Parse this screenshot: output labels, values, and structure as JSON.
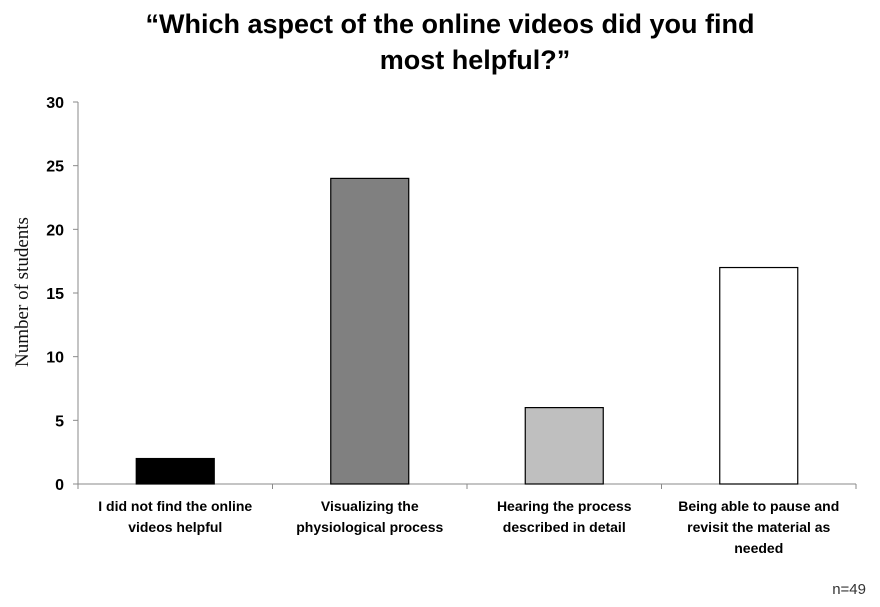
{
  "chart_data": {
    "type": "bar",
    "title": "“Which aspect of the online videos did you find most helpful?”",
    "title_lines": [
      "“Which aspect of the online videos did you find",
      "most helpful?”"
    ],
    "ylabel": "Number of students",
    "xlabel": "",
    "ylim": [
      0,
      30
    ],
    "yticks": [
      0,
      5,
      10,
      15,
      20,
      25,
      30
    ],
    "grid": false,
    "categories": [
      "I did not find the online videos helpful",
      "Visualizing the physiological process",
      "Hearing the process described in detail",
      "Being able to pause and revisit the material as needed"
    ],
    "category_lines": [
      [
        "I did not find the online",
        "videos helpful"
      ],
      [
        "Visualizing the",
        "physiological process"
      ],
      [
        "Hearing the process",
        "described in detail"
      ],
      [
        "Being able to pause and",
        "revisit the material as",
        "needed"
      ]
    ],
    "values": [
      2,
      24,
      6,
      17
    ],
    "bar_colors": [
      "#000000",
      "#808080",
      "#bfbfbf",
      "#ffffff"
    ],
    "note": "n=49"
  }
}
